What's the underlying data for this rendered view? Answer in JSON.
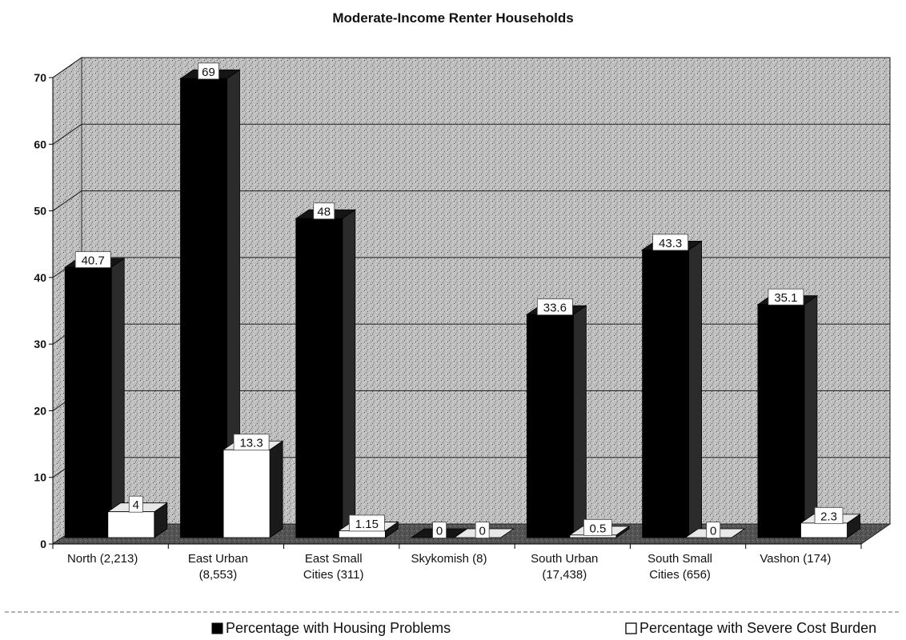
{
  "chart_data": {
    "type": "bar",
    "title": "Moderate-Income Renter Households",
    "categories": [
      [
        "North (2,213)"
      ],
      [
        "East Urban",
        "(8,553)"
      ],
      [
        "East Small",
        "Cities (311)"
      ],
      [
        "Skykomish (8)"
      ],
      [
        "South Urban",
        "(17,438)"
      ],
      [
        "South Small",
        "Cities (656)"
      ],
      [
        "Vashon (174)"
      ]
    ],
    "series": [
      {
        "name": "Percentage with Housing Problems",
        "color": "#000000",
        "values": [
          40.7,
          69,
          48,
          0,
          33.6,
          43.3,
          35.1
        ],
        "labels": [
          "40.7",
          "69",
          "48",
          "0",
          "33.6",
          "43.3",
          "35.1"
        ]
      },
      {
        "name": "Percentage with Severe Cost Burden",
        "color": "#ffffff",
        "values": [
          4,
          13.3,
          1.15,
          0,
          0.5,
          0,
          2.3
        ],
        "labels": [
          "4",
          "13.3",
          "1.15",
          "0",
          "0.5",
          "0",
          "2.3"
        ]
      }
    ],
    "ylim": [
      0,
      70
    ],
    "yticks": [
      "0",
      "10",
      "20",
      "30",
      "40",
      "50",
      "60",
      "70"
    ],
    "grid": true,
    "legend_position": "bottom",
    "style": "3d"
  }
}
